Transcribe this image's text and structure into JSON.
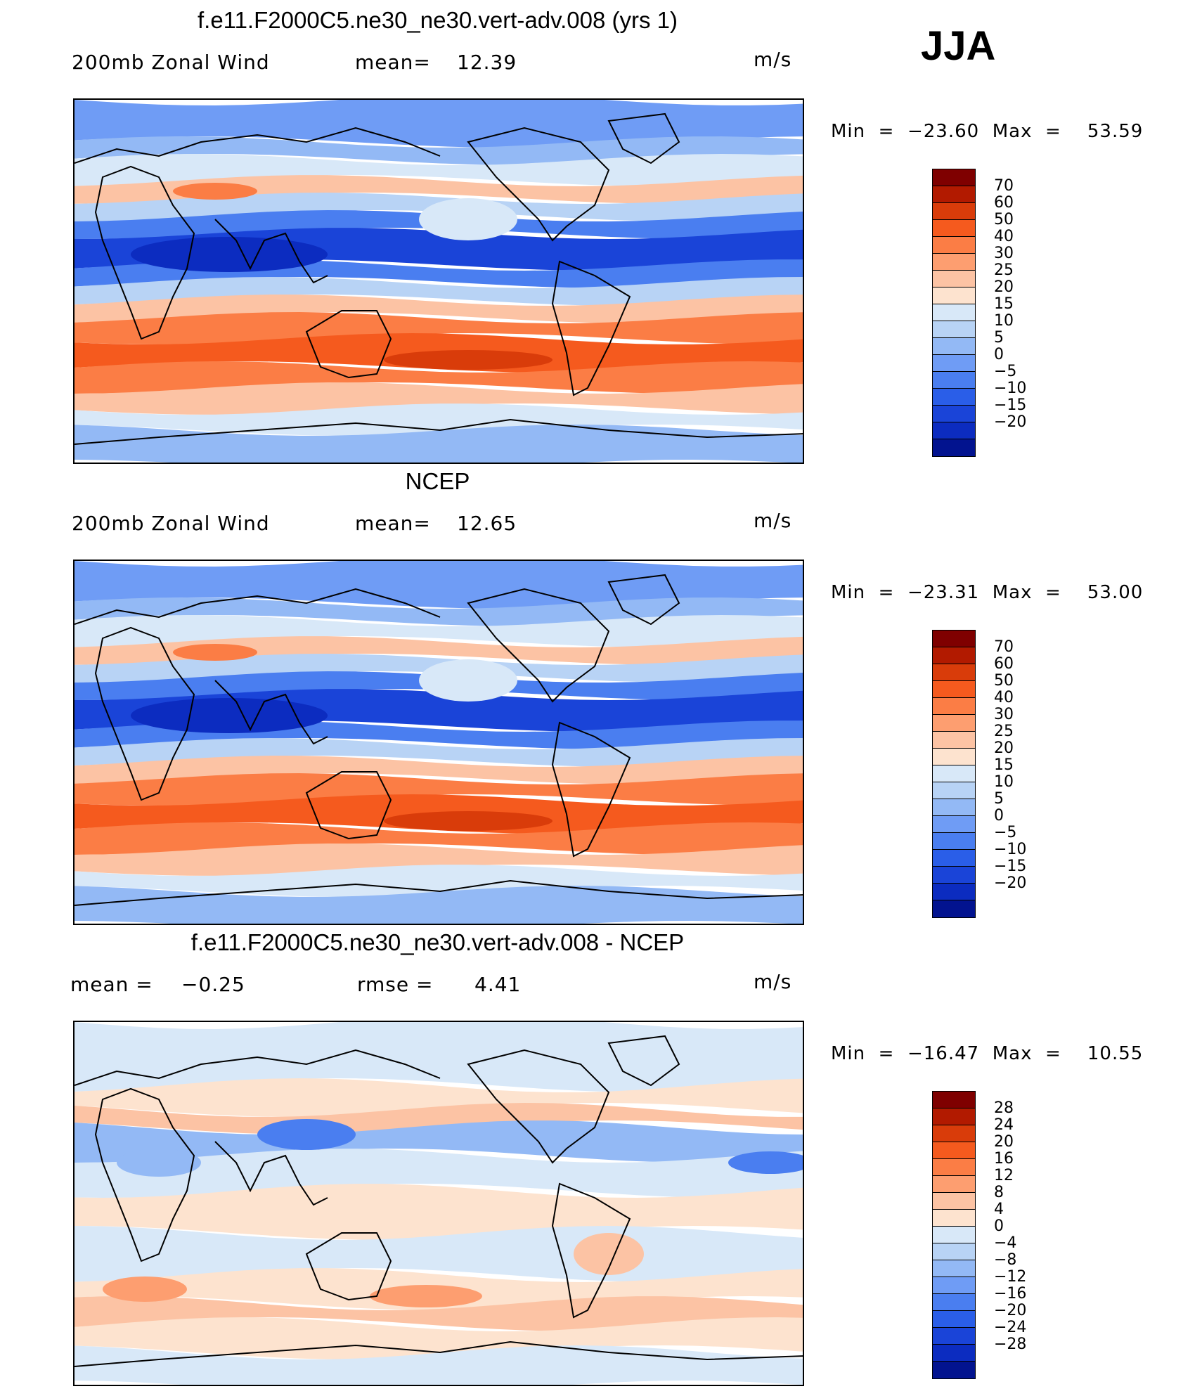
{
  "season": "JJA",
  "panels": [
    {
      "id": "model",
      "title": "f.e11.F2000C5.ne30_ne30.vert-adv.008 (yrs 1)",
      "left_label": "200mb Zonal Wind",
      "stat_label": "mean=",
      "stat_value": "12.39",
      "stat2_label": "",
      "stat2_value": "",
      "units": "m/s",
      "min_label": "Min",
      "min_value": "−23.60",
      "max_label": "Max",
      "max_value": "53.59",
      "colorbar_labels": [
        "70",
        "60",
        "50",
        "40",
        "30",
        "25",
        "20",
        "15",
        "10",
        "5",
        "0",
        "−5",
        "−10",
        "−15",
        "−20"
      ]
    },
    {
      "id": "obs",
      "title": "NCEP",
      "left_label": "200mb Zonal Wind",
      "stat_label": "mean=",
      "stat_value": "12.65",
      "stat2_label": "",
      "stat2_value": "",
      "units": "m/s",
      "min_label": "Min",
      "min_value": "−23.31",
      "max_label": "Max",
      "max_value": "53.00",
      "colorbar_labels": [
        "70",
        "60",
        "50",
        "40",
        "30",
        "25",
        "20",
        "15",
        "10",
        "5",
        "0",
        "−5",
        "−10",
        "−15",
        "−20"
      ]
    },
    {
      "id": "diff",
      "title": "f.e11.F2000C5.ne30_ne30.vert-adv.008 - NCEP",
      "left_label": "mean =",
      "stat_label": "",
      "stat_value": "",
      "left_value": "−0.25",
      "stat2_label": "rmse =",
      "stat2_value": "4.41",
      "units": "m/s",
      "min_label": "Min",
      "min_value": "−16.47",
      "max_label": "Max",
      "max_value": "10.55",
      "colorbar_labels": [
        "28",
        "24",
        "20",
        "16",
        "12",
        "8",
        "4",
        "0",
        "−4",
        "−8",
        "−12",
        "−16",
        "−20",
        "−24",
        "−28"
      ]
    }
  ],
  "colors": {
    "levels": [
      "#7f0000",
      "#b21a00",
      "#d93c0a",
      "#f55a1e",
      "#fb7d45",
      "#fd9e70",
      "#fcc3a4",
      "#fde3cf",
      "#d8e8f8",
      "#b8d3f5",
      "#93b9f5",
      "#6f9cf5",
      "#4a7ef0",
      "#2a5ee8",
      "#1a44d8",
      "#0c2cc0",
      "#02138f"
    ],
    "coast": "#000000"
  }
}
